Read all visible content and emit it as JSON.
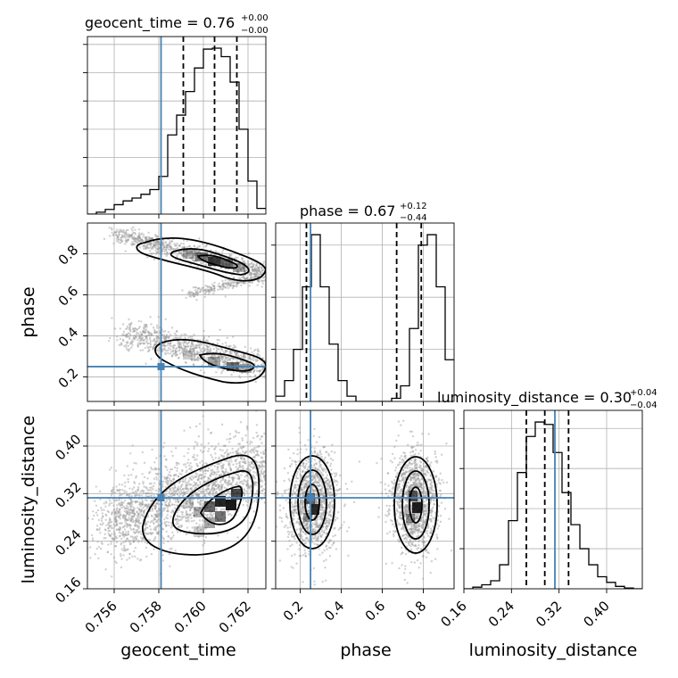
{
  "chart_data": {
    "type": "corner",
    "parameters": [
      "geocent_time",
      "phase",
      "luminosity_distance"
    ],
    "titles": [
      {
        "param": "geocent_time",
        "text": "geocent_time = 0.76",
        "sup": "+0.00",
        "sub": "−0.00"
      },
      {
        "param": "phase",
        "text": "phase = 0.67",
        "sup": "+0.12",
        "sub": "−0.44"
      },
      {
        "param": "luminosity_distance",
        "text": "luminosity_distance = 0.30",
        "sup": "+0.04",
        "sub": "−0.04"
      }
    ],
    "axis_labels": {
      "x": [
        "geocent_time",
        "phase",
        "luminosity_distance"
      ],
      "y": [
        "phase",
        "luminosity_distance"
      ]
    },
    "ranges": {
      "geocent_time": [
        0.7548,
        0.7628
      ],
      "phase": [
        0.08,
        0.95
      ],
      "luminosity_distance": [
        0.16,
        0.46
      ]
    },
    "ticks": {
      "geocent_time": [
        "0.756",
        "0.758",
        "0.760",
        "0.762"
      ],
      "phase_diag": [
        "0.2",
        "0.4",
        "0.6",
        "0.8"
      ],
      "phase_left": [
        "0.2",
        "0.4",
        "0.6",
        "0.8"
      ],
      "luminosity_distance": [
        "0.16",
        "0.24",
        "0.32",
        "0.40"
      ]
    },
    "truth": {
      "geocent_time": 0.7581,
      "phase": 0.25,
      "luminosity_distance": 0.313
    },
    "quantiles": {
      "geocent_time": [
        0.7591,
        0.7605,
        0.7615
      ],
      "phase": [
        0.23,
        0.67,
        0.79
      ],
      "luminosity_distance": [
        0.265,
        0.296,
        0.336
      ]
    },
    "histograms": {
      "geocent_time": {
        "edges_start": 0.7548,
        "bin_width": 0.0004,
        "counts": [
          0,
          2,
          5,
          10,
          14,
          17,
          21,
          26,
          40,
          84,
          105,
          130,
          155,
          175,
          176,
          167,
          140,
          90,
          35,
          6
        ]
      },
      "phase": {
        "edges_start": 0.08,
        "bin_width": 0.0435,
        "counts": [
          5,
          20,
          50,
          110,
          160,
          110,
          55,
          20,
          5,
          0,
          0,
          0,
          0,
          3,
          15,
          70,
          150,
          160,
          110,
          40
        ]
      },
      "luminosity_distance": {
        "edges_start": 0.16,
        "bin_width": 0.015,
        "counts": [
          0,
          2,
          5,
          10,
          30,
          85,
          145,
          190,
          208,
          205,
          170,
          120,
          80,
          50,
          30,
          15,
          8,
          3,
          1,
          0
        ]
      }
    },
    "grid": true,
    "colors": {
      "truth": "#4682b4",
      "contour": "#000000",
      "points": "#999999"
    }
  }
}
